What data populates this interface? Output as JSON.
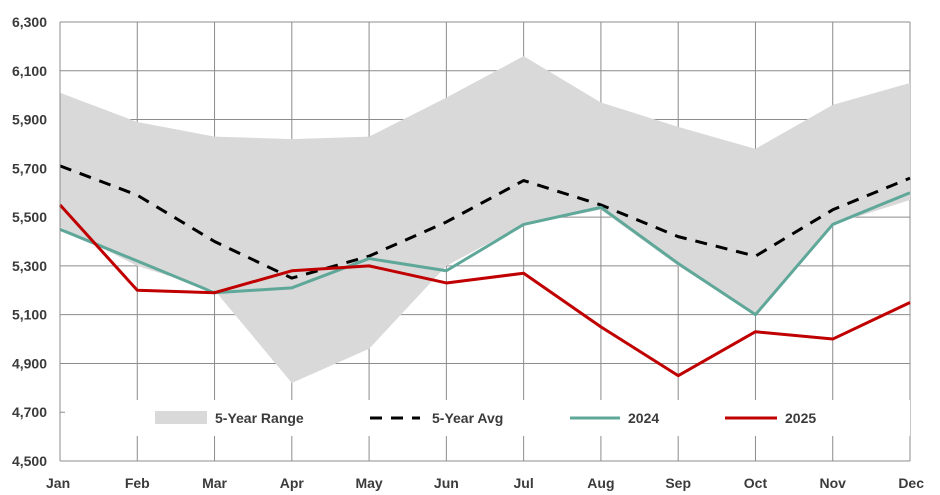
{
  "chart_data": {
    "type": "line",
    "categories": [
      "Jan",
      "Feb",
      "Mar",
      "Apr",
      "May",
      "Jun",
      "Jul",
      "Aug",
      "Sep",
      "Oct",
      "Nov",
      "Dec"
    ],
    "ylim": [
      4500,
      6300
    ],
    "yticks": [
      4500,
      4700,
      4900,
      5100,
      5300,
      5500,
      5700,
      5900,
      6100,
      6300
    ],
    "ytick_labels": [
      "4,500",
      "4,700",
      "4,900",
      "5,100",
      "5,300",
      "5,500",
      "5,700",
      "5,900",
      "6,100",
      "6,300"
    ],
    "grid": true,
    "range": {
      "name": "5-Year Range",
      "color": "#d9d9d9",
      "low": [
        5460,
        5300,
        5200,
        4820,
        4960,
        5300,
        5470,
        5530,
        5300,
        5100,
        5470,
        5570
      ],
      "high": [
        6010,
        5890,
        5830,
        5820,
        5830,
        5990,
        6160,
        5970,
        5870,
        5780,
        5960,
        6050
      ]
    },
    "series": [
      {
        "name": "5-Year Avg",
        "color": "#000000",
        "dashed": true,
        "values": [
          5710,
          5590,
          5400,
          5250,
          5340,
          5480,
          5650,
          5550,
          5420,
          5340,
          5530,
          5660
        ]
      },
      {
        "name": "2024",
        "color": "#5fa899",
        "dashed": false,
        "values": [
          5450,
          5320,
          5190,
          5210,
          5330,
          5280,
          5470,
          5540,
          5310,
          5100,
          5470,
          5600
        ]
      },
      {
        "name": "2025",
        "color": "#c00000",
        "dashed": false,
        "values": [
          5550,
          5200,
          5190,
          5280,
          5300,
          5230,
          5270,
          5050,
          4850,
          5030,
          5000,
          5150
        ]
      }
    ],
    "legend": {
      "placement": "bottom-inside",
      "labels": [
        "5-Year Range",
        "5-Year Avg",
        "2024",
        "2025"
      ]
    }
  }
}
